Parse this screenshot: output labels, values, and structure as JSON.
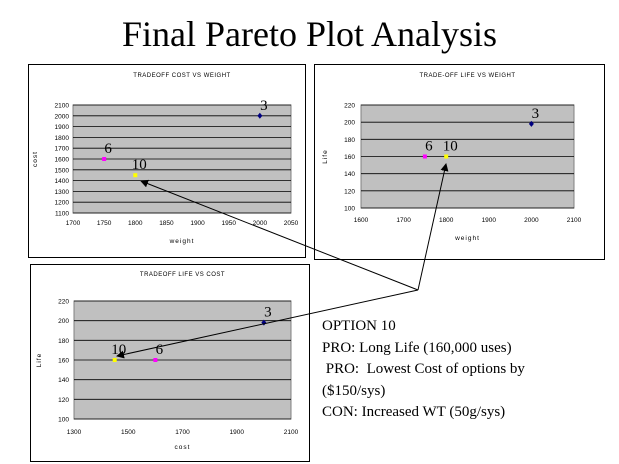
{
  "page": {
    "title": "Final Pareto Plot Analysis",
    "notes": [
      "OPTION 10",
      "PRO:  Long Life (160,000 uses)",
      " PRO:  Lowest Cost of options by",
      "($150/sys)",
      "CON:  Increased WT (50g/sys)"
    ]
  },
  "colors": {
    "plot_area": "#c0c0c0",
    "gridline": "#000000",
    "point_3": "#000080",
    "point_6": "#ff00ff",
    "point_10": "#ffff00"
  },
  "chart_data": [
    {
      "type": "scatter",
      "title": "TRADEOFF COST VS WEIGHT",
      "xlabel": "weight",
      "ylabel": "cost",
      "xlim": [
        1700,
        2050
      ],
      "ylim": [
        1100,
        2100
      ],
      "xticks": [
        1700,
        1750,
        1800,
        1850,
        1900,
        1950,
        2000,
        2050
      ],
      "yticks": [
        1100,
        1200,
        1300,
        1400,
        1500,
        1600,
        1700,
        1800,
        1900,
        2000,
        2100
      ],
      "grid": true,
      "points": [
        {
          "label": "3",
          "x": 2000,
          "y": 2000
        },
        {
          "label": "6",
          "x": 1750,
          "y": 1600
        },
        {
          "label": "10",
          "x": 1800,
          "y": 1450
        }
      ]
    },
    {
      "type": "scatter",
      "title": "TRADE-OFF LIFE VS WEIGHT",
      "xlabel": "weight",
      "ylabel": "Life",
      "xlim": [
        1600,
        2100
      ],
      "ylim": [
        100,
        220
      ],
      "xticks": [
        1600,
        1700,
        1800,
        1900,
        2000,
        2100
      ],
      "yticks": [
        100,
        120,
        140,
        160,
        180,
        200,
        220
      ],
      "grid": true,
      "points": [
        {
          "label": "3",
          "x": 2000,
          "y": 198
        },
        {
          "label": "6",
          "x": 1750,
          "y": 160
        },
        {
          "label": "10",
          "x": 1800,
          "y": 160
        }
      ]
    },
    {
      "type": "scatter",
      "title": "TRADEOFF LIFE VS COST",
      "xlabel": "cost",
      "ylabel": "Life",
      "xlim": [
        1300,
        2100
      ],
      "ylim": [
        100,
        220
      ],
      "xticks": [
        1300,
        1500,
        1700,
        1900,
        2100
      ],
      "yticks": [
        100,
        120,
        140,
        160,
        180,
        200,
        220
      ],
      "grid": true,
      "points": [
        {
          "label": "3",
          "x": 2000,
          "y": 198
        },
        {
          "label": "6",
          "x": 1600,
          "y": 160
        },
        {
          "label": "10",
          "x": 1450,
          "y": 160
        }
      ]
    }
  ]
}
